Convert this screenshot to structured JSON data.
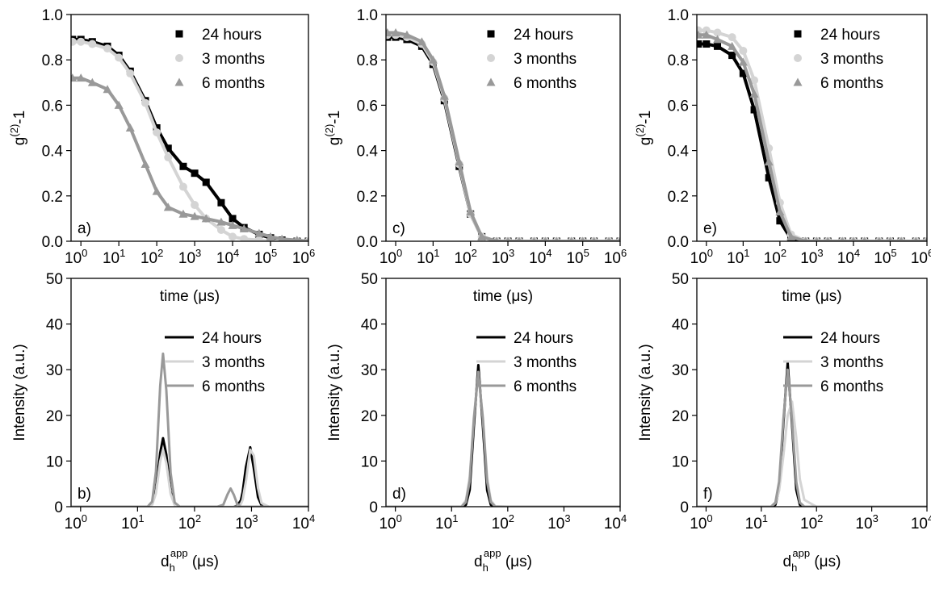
{
  "chart_data": [
    {
      "type": "scatter",
      "label": "a)",
      "xlabel": [
        {
          "text": "time (μs)"
        }
      ],
      "ylabel": [
        {
          "text": "g"
        },
        {
          "text": "(2)",
          "shift": "sup"
        },
        {
          "text": "-1"
        }
      ],
      "log_x": true,
      "legend": "upper right",
      "xlim": [
        0.55,
        1000000
      ],
      "ylim": [
        0,
        1
      ],
      "xticks": [
        {
          "value": 1,
          "label": "10",
          "exponent": "0"
        },
        {
          "value": 10,
          "label": "10",
          "exponent": "1"
        },
        {
          "value": 100,
          "label": "10",
          "exponent": "2"
        },
        {
          "value": 1000,
          "label": "10",
          "exponent": "3"
        },
        {
          "value": 10000,
          "label": "10",
          "exponent": "4"
        },
        {
          "value": 100000,
          "label": "10",
          "exponent": "5"
        },
        {
          "value": 1000000,
          "label": "10",
          "exponent": "6"
        }
      ],
      "yticks": [
        {
          "value": 0,
          "label": "0.0"
        },
        0.2,
        0.4,
        0.6,
        0.8,
        {
          "value": 1,
          "label": "1.0"
        }
      ],
      "x": [
        0.6,
        1,
        2,
        5,
        10,
        20,
        50,
        100,
        200,
        500,
        1000,
        2000,
        5000,
        10000,
        20000,
        50000,
        100000,
        200000,
        500000,
        1000000
      ],
      "series": [
        {
          "name": "24 hours",
          "color": "#000000",
          "marker": "square",
          "values": [
            0.89,
            0.89,
            0.88,
            0.86,
            0.82,
            0.75,
            0.62,
            0.5,
            0.41,
            0.33,
            0.3,
            0.26,
            0.17,
            0.1,
            0.06,
            0.03,
            0.015,
            0.005,
            0,
            0
          ]
        },
        {
          "name": "3 months",
          "color": "#d4d4d4",
          "marker": "circle",
          "values": [
            0.88,
            0.88,
            0.87,
            0.85,
            0.81,
            0.74,
            0.61,
            0.48,
            0.37,
            0.24,
            0.16,
            0.1,
            0.05,
            0.02,
            0.01,
            0.005,
            0,
            0,
            0,
            0
          ]
        },
        {
          "name": "6 months",
          "color": "#999999",
          "marker": "triangle",
          "values": [
            0.72,
            0.72,
            0.7,
            0.67,
            0.6,
            0.5,
            0.34,
            0.22,
            0.15,
            0.12,
            0.11,
            0.1,
            0.085,
            0.07,
            0.055,
            0.035,
            0.02,
            0.01,
            0.005,
            0
          ]
        }
      ]
    },
    {
      "type": "scatter",
      "label": "c)",
      "xlabel": [
        {
          "text": "time (μs)"
        }
      ],
      "ylabel": [
        {
          "text": "g"
        },
        {
          "text": "(2)",
          "shift": "sup"
        },
        {
          "text": "-1"
        }
      ],
      "log_x": true,
      "legend": "upper right",
      "xlim": [
        0.55,
        1000000
      ],
      "ylim": [
        0,
        1
      ],
      "xticks": [
        {
          "value": 1,
          "label": "10",
          "exponent": "0"
        },
        {
          "value": 10,
          "label": "10",
          "exponent": "1"
        },
        {
          "value": 100,
          "label": "10",
          "exponent": "2"
        },
        {
          "value": 1000,
          "label": "10",
          "exponent": "3"
        },
        {
          "value": 10000,
          "label": "10",
          "exponent": "4"
        },
        {
          "value": 100000,
          "label": "10",
          "exponent": "5"
        },
        {
          "value": 1000000,
          "label": "10",
          "exponent": "6"
        }
      ],
      "yticks": [
        {
          "value": 0,
          "label": "0.0"
        },
        0.2,
        0.4,
        0.6,
        0.8,
        {
          "value": 1,
          "label": "1.0"
        }
      ],
      "x": [
        0.6,
        1,
        2,
        5,
        10,
        20,
        50,
        100,
        200,
        500,
        1000,
        2000,
        5000,
        10000,
        20000,
        50000,
        100000,
        200000,
        500000,
        1000000
      ],
      "series": [
        {
          "name": "24 hours",
          "color": "#000000",
          "marker": "square",
          "values": [
            0.9,
            0.9,
            0.89,
            0.86,
            0.78,
            0.62,
            0.33,
            0.12,
            0.02,
            0,
            0,
            0,
            0,
            0,
            0,
            0,
            0,
            0,
            0,
            0
          ]
        },
        {
          "name": "3 months",
          "color": "#d4d4d4",
          "marker": "circle",
          "values": [
            0.91,
            0.91,
            0.9,
            0.87,
            0.79,
            0.63,
            0.34,
            0.12,
            0.02,
            0,
            0,
            0,
            0,
            0,
            0,
            0,
            0,
            0,
            0,
            0
          ]
        },
        {
          "name": "6 months",
          "color": "#999999",
          "marker": "triangle",
          "values": [
            0.92,
            0.92,
            0.91,
            0.88,
            0.8,
            0.64,
            0.35,
            0.13,
            0.02,
            0,
            0,
            0,
            0,
            0,
            0,
            0,
            0,
            0,
            0,
            0
          ]
        }
      ]
    },
    {
      "type": "scatter",
      "label": "e)",
      "xlabel": [
        {
          "text": "time (μs)"
        }
      ],
      "ylabel": [
        {
          "text": "g"
        },
        {
          "text": "(2)",
          "shift": "sup"
        },
        {
          "text": "-1"
        }
      ],
      "log_x": true,
      "legend": "upper right",
      "xlim": [
        0.55,
        1000000
      ],
      "ylim": [
        0,
        1
      ],
      "xticks": [
        {
          "value": 1,
          "label": "10",
          "exponent": "0"
        },
        {
          "value": 10,
          "label": "10",
          "exponent": "1"
        },
        {
          "value": 100,
          "label": "10",
          "exponent": "2"
        },
        {
          "value": 1000,
          "label": "10",
          "exponent": "3"
        },
        {
          "value": 10000,
          "label": "10",
          "exponent": "4"
        },
        {
          "value": 100000,
          "label": "10",
          "exponent": "5"
        },
        {
          "value": 1000000,
          "label": "10",
          "exponent": "6"
        }
      ],
      "yticks": [
        {
          "value": 0,
          "label": "0.0"
        },
        0.2,
        0.4,
        0.6,
        0.8,
        {
          "value": 1,
          "label": "1.0"
        }
      ],
      "x": [
        0.6,
        1,
        2,
        5,
        10,
        20,
        50,
        100,
        200,
        500,
        1000,
        2000,
        5000,
        10000,
        20000,
        50000,
        100000,
        200000,
        500000,
        1000000
      ],
      "series": [
        {
          "name": "24 hours",
          "color": "#000000",
          "marker": "square",
          "values": [
            0.87,
            0.87,
            0.86,
            0.82,
            0.74,
            0.58,
            0.28,
            0.09,
            0.01,
            0,
            0,
            0,
            0,
            0,
            0,
            0,
            0,
            0,
            0,
            0
          ]
        },
        {
          "name": "3 months",
          "color": "#d4d4d4",
          "marker": "circle",
          "values": [
            0.93,
            0.93,
            0.92,
            0.9,
            0.84,
            0.71,
            0.41,
            0.17,
            0.03,
            0,
            0,
            0,
            0,
            0,
            0,
            0,
            0,
            0,
            0,
            0
          ]
        },
        {
          "name": "6 months",
          "color": "#999999",
          "marker": "triangle",
          "values": [
            0.91,
            0.91,
            0.89,
            0.86,
            0.79,
            0.65,
            0.35,
            0.13,
            0.02,
            0,
            0,
            0,
            0,
            0,
            0,
            0,
            0,
            0,
            0,
            0
          ]
        }
      ]
    },
    {
      "type": "line",
      "label": "b)",
      "xlabel": [
        {
          "text": "d"
        },
        {
          "text": "h",
          "shift": "sub"
        },
        {
          "text": "app",
          "shift": "sup"
        },
        {
          "text": " (μs)"
        }
      ],
      "ylabel": [
        {
          "text": "Intensity (a.u.)"
        }
      ],
      "log_x": true,
      "legend": "upper right",
      "xlim": [
        0.68,
        10000
      ],
      "ylim": [
        0,
        50
      ],
      "xticks": [
        {
          "value": 1,
          "label": "10",
          "exponent": "0"
        },
        {
          "value": 10,
          "label": "10",
          "exponent": "1"
        },
        {
          "value": 100,
          "label": "10",
          "exponent": "2"
        },
        {
          "value": 1000,
          "label": "10",
          "exponent": "3"
        },
        {
          "value": 10000,
          "label": "10",
          "exponent": "4"
        }
      ],
      "yticks": [
        0,
        10,
        20,
        30,
        40,
        50
      ],
      "x": [
        0.7,
        1,
        10,
        15,
        18,
        21,
        25,
        28,
        32,
        38,
        45,
        55,
        100,
        250,
        320,
        380,
        430,
        490,
        560,
        650,
        700,
        800,
        950,
        1100,
        1300,
        1500,
        2000,
        10000
      ],
      "series": [
        {
          "name": "24 hours",
          "color": "#000000",
          "values": [
            0,
            0,
            0,
            0,
            0.5,
            3.5,
            11.8,
            15,
            11.4,
            3.3,
            0.4,
            0,
            0,
            0,
            0,
            0,
            0,
            0,
            0.2,
            1.4,
            3.2,
            8.7,
            13,
            8.3,
            2.1,
            0.3,
            0,
            0
          ]
        },
        {
          "name": "3 months",
          "color": "#d4d4d4",
          "values": [
            0,
            0,
            0,
            0,
            0.4,
            2.9,
            9.9,
            12.5,
            9.5,
            2.8,
            0.3,
            0,
            0,
            0,
            0,
            0,
            0,
            0,
            0,
            0.6,
            1.5,
            5.6,
            12.5,
            11.2,
            4.1,
            0.8,
            0,
            0
          ]
        },
        {
          "name": "6 months",
          "color": "#999999",
          "values": [
            0,
            0,
            0,
            0,
            1.1,
            7.7,
            26.5,
            33.5,
            25.5,
            7.4,
            0.9,
            0,
            0,
            0,
            0.4,
            2.7,
            4,
            2.6,
            0.6,
            0,
            0,
            0,
            0,
            0,
            0,
            0,
            0,
            0
          ]
        }
      ]
    },
    {
      "type": "line",
      "label": "d)",
      "xlabel": [
        {
          "text": "d"
        },
        {
          "text": "h",
          "shift": "sub"
        },
        {
          "text": "app",
          "shift": "sup"
        },
        {
          "text": " (μs)"
        }
      ],
      "ylabel": [
        {
          "text": "Intensity (a.u.)"
        }
      ],
      "log_x": true,
      "legend": "upper right",
      "xlim": [
        0.68,
        10000
      ],
      "ylim": [
        0,
        50
      ],
      "xticks": [
        {
          "value": 1,
          "label": "10",
          "exponent": "0"
        },
        {
          "value": 10,
          "label": "10",
          "exponent": "1"
        },
        {
          "value": 100,
          "label": "10",
          "exponent": "2"
        },
        {
          "value": 1000,
          "label": "10",
          "exponent": "3"
        },
        {
          "value": 10000,
          "label": "10",
          "exponent": "4"
        }
      ],
      "yticks": [
        0,
        10,
        20,
        30,
        40,
        50
      ],
      "x": [
        0.7,
        1,
        10,
        15,
        18,
        21,
        25,
        30,
        36,
        43,
        50,
        60,
        100,
        10000
      ],
      "series": [
        {
          "name": "24 hours",
          "color": "#000000",
          "values": [
            0,
            0,
            0,
            0,
            0.4,
            3.7,
            17.7,
            31,
            17.7,
            3.6,
            0.4,
            0,
            0,
            0
          ]
        },
        {
          "name": "3 months",
          "color": "#d4d4d4",
          "values": [
            0,
            0,
            0,
            0,
            1.4,
            6.6,
            19.7,
            29,
            19.7,
            6.4,
            1.4,
            0.1,
            0,
            0
          ]
        },
        {
          "name": "6 months",
          "color": "#999999",
          "values": [
            0,
            0,
            0,
            0,
            1,
            5.6,
            19.2,
            29.5,
            19.2,
            5.5,
            1,
            0,
            0,
            0
          ]
        }
      ]
    },
    {
      "type": "line",
      "label": "f)",
      "xlabel": [
        {
          "text": "d"
        },
        {
          "text": "h",
          "shift": "sub"
        },
        {
          "text": "app",
          "shift": "sup"
        },
        {
          "text": " (μs)"
        }
      ],
      "ylabel": [
        {
          "text": "Intensity (a.u.)"
        }
      ],
      "log_x": true,
      "legend": "upper right",
      "xlim": [
        0.68,
        10000
      ],
      "ylim": [
        0,
        50
      ],
      "xticks": [
        {
          "value": 1,
          "label": "10",
          "exponent": "0"
        },
        {
          "value": 10,
          "label": "10",
          "exponent": "1"
        },
        {
          "value": 100,
          "label": "10",
          "exponent": "2"
        },
        {
          "value": 1000,
          "label": "10",
          "exponent": "3"
        },
        {
          "value": 10000,
          "label": "10",
          "exponent": "4"
        }
      ],
      "yticks": [
        0,
        10,
        20,
        30,
        40,
        50
      ],
      "x": [
        0.7,
        1,
        10,
        15,
        18,
        21,
        25,
        30,
        36,
        43,
        50,
        60,
        100,
        10000
      ],
      "series": [
        {
          "name": "24 hours",
          "color": "#000000",
          "values": [
            0,
            0,
            0,
            0,
            0.4,
            3.8,
            18,
            31.5,
            18,
            3.7,
            0.4,
            0,
            0,
            0
          ]
        },
        {
          "name": "3 months",
          "color": "#d4d4d4",
          "values": [
            0,
            0,
            0,
            0,
            0.8,
            3.5,
            11,
            20,
            23,
            15,
            6,
            1.5,
            0,
            0
          ]
        },
        {
          "name": "6 months",
          "color": "#999999",
          "values": [
            0,
            0,
            0,
            0,
            0.9,
            5.5,
            19,
            30,
            19,
            5.4,
            0.9,
            0,
            0,
            0
          ]
        }
      ]
    }
  ]
}
